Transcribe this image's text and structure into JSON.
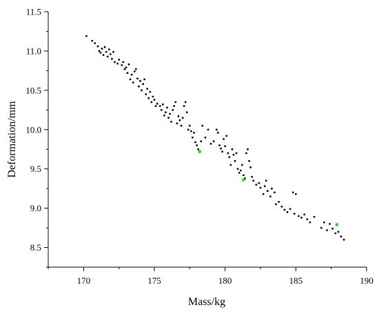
{
  "chart_data": {
    "type": "scatter",
    "xlabel": "Mass/kg",
    "ylabel": "Deformation/mm",
    "xlim": [
      167.5,
      190
    ],
    "ylim": [
      8.25,
      11.5
    ],
    "x_ticks": [
      170,
      175,
      180,
      185,
      190
    ],
    "y_ticks": [
      8.5,
      9.0,
      9.5,
      10.0,
      10.5,
      11.0,
      11.5
    ],
    "x_tick_labels": [
      "170",
      "175",
      "180",
      "185",
      "190"
    ],
    "y_tick_labels": [
      "8.5",
      "9.0",
      "9.5",
      "10.0",
      "10.5",
      "11.0",
      "11.5"
    ],
    "grid": false,
    "legend": "none",
    "series": [
      {
        "color": "#000000",
        "points": [
          [
            170.2,
            11.19
          ],
          [
            170.6,
            11.13
          ],
          [
            170.8,
            11.1
          ],
          [
            171.0,
            11.06
          ],
          [
            171.1,
            11.0
          ],
          [
            171.2,
            10.98
          ],
          [
            171.3,
            11.03
          ],
          [
            171.4,
            10.95
          ],
          [
            171.5,
            11.05
          ],
          [
            171.6,
            10.99
          ],
          [
            171.7,
            10.93
          ],
          [
            171.8,
            11.02
          ],
          [
            171.9,
            10.96
          ],
          [
            172.0,
            10.9
          ],
          [
            172.1,
            10.99
          ],
          [
            172.2,
            10.86
          ],
          [
            172.4,
            10.84
          ],
          [
            172.5,
            10.89
          ],
          [
            172.7,
            10.82
          ],
          [
            172.8,
            10.86
          ],
          [
            172.9,
            10.77
          ],
          [
            173.0,
            10.79
          ],
          [
            173.1,
            10.72
          ],
          [
            173.2,
            10.83
          ],
          [
            173.3,
            10.64
          ],
          [
            173.4,
            10.7
          ],
          [
            173.5,
            10.6
          ],
          [
            173.6,
            10.74
          ],
          [
            173.7,
            10.77
          ],
          [
            173.8,
            10.65
          ],
          [
            173.9,
            10.55
          ],
          [
            174.0,
            10.62
          ],
          [
            174.1,
            10.5
          ],
          [
            174.2,
            10.58
          ],
          [
            174.3,
            10.64
          ],
          [
            174.4,
            10.45
          ],
          [
            174.5,
            10.52
          ],
          [
            174.6,
            10.4
          ],
          [
            174.7,
            10.48
          ],
          [
            174.8,
            10.35
          ],
          [
            174.9,
            10.42
          ],
          [
            175.0,
            10.38
          ],
          [
            175.1,
            10.3
          ],
          [
            175.2,
            10.33
          ],
          [
            175.4,
            10.3
          ],
          [
            175.5,
            10.25
          ],
          [
            175.6,
            10.32
          ],
          [
            175.7,
            10.18
          ],
          [
            175.8,
            10.22
          ],
          [
            175.9,
            10.28
          ],
          [
            176.0,
            10.15
          ],
          [
            176.1,
            10.2
          ],
          [
            176.2,
            10.1
          ],
          [
            176.3,
            10.25
          ],
          [
            176.4,
            10.3
          ],
          [
            176.5,
            10.35
          ],
          [
            176.6,
            10.08
          ],
          [
            176.7,
            10.17
          ],
          [
            176.8,
            10.12
          ],
          [
            176.9,
            10.05
          ],
          [
            177.0,
            10.15
          ],
          [
            177.1,
            10.3
          ],
          [
            177.2,
            10.35
          ],
          [
            177.3,
            10.22
          ],
          [
            177.4,
            10.0
          ],
          [
            177.5,
            10.05
          ],
          [
            177.6,
            9.98
          ],
          [
            177.7,
            9.9
          ],
          [
            177.8,
            9.96
          ],
          [
            177.9,
            9.84
          ],
          [
            178.0,
            9.8
          ],
          [
            178.1,
            9.75
          ],
          [
            178.3,
            9.85
          ],
          [
            178.4,
            10.05
          ],
          [
            178.6,
            9.9
          ],
          [
            178.8,
            10.0
          ],
          [
            179.0,
            9.82
          ],
          [
            179.2,
            9.85
          ],
          [
            179.4,
            10.0
          ],
          [
            179.5,
            9.96
          ],
          [
            179.6,
            9.8
          ],
          [
            179.7,
            9.76
          ],
          [
            179.8,
            9.72
          ],
          [
            179.9,
            9.88
          ],
          [
            180.0,
            9.79
          ],
          [
            180.1,
            9.92
          ],
          [
            180.2,
            9.7
          ],
          [
            180.3,
            9.65
          ],
          [
            180.4,
            9.55
          ],
          [
            180.5,
            9.75
          ],
          [
            180.6,
            9.68
          ],
          [
            180.7,
            9.6
          ],
          [
            180.8,
            9.7
          ],
          [
            180.9,
            9.5
          ],
          [
            181.0,
            9.45
          ],
          [
            181.1,
            9.48
          ],
          [
            181.2,
            9.55
          ],
          [
            181.3,
            9.42
          ],
          [
            181.4,
            9.38
          ],
          [
            181.5,
            9.7
          ],
          [
            181.6,
            9.75
          ],
          [
            181.7,
            9.6
          ],
          [
            181.8,
            9.52
          ],
          [
            181.9,
            9.4
          ],
          [
            182.0,
            9.35
          ],
          [
            182.2,
            9.3
          ],
          [
            182.4,
            9.32
          ],
          [
            182.5,
            9.26
          ],
          [
            182.7,
            9.18
          ],
          [
            182.8,
            9.28
          ],
          [
            182.9,
            9.35
          ],
          [
            183.0,
            9.22
          ],
          [
            183.2,
            9.15
          ],
          [
            183.3,
            9.25
          ],
          [
            183.5,
            9.2
          ],
          [
            183.6,
            9.05
          ],
          [
            183.8,
            9.08
          ],
          [
            184.0,
            9.02
          ],
          [
            184.2,
            8.98
          ],
          [
            184.4,
            8.95
          ],
          [
            184.6,
            8.99
          ],
          [
            184.8,
            9.2
          ],
          [
            184.9,
            8.93
          ],
          [
            185.0,
            9.18
          ],
          [
            185.2,
            8.9
          ],
          [
            185.4,
            8.88
          ],
          [
            185.6,
            8.92
          ],
          [
            185.8,
            8.86
          ],
          [
            186.0,
            8.82
          ],
          [
            186.3,
            8.89
          ],
          [
            186.8,
            8.75
          ],
          [
            187.0,
            8.82
          ],
          [
            187.2,
            8.72
          ],
          [
            187.4,
            8.8
          ],
          [
            187.6,
            8.74
          ],
          [
            187.8,
            8.68
          ],
          [
            188.0,
            8.7
          ],
          [
            188.2,
            8.64
          ],
          [
            188.4,
            8.6
          ]
        ]
      },
      {
        "color": "#22dd22",
        "points": [
          [
            178.2,
            9.72
          ],
          [
            181.3,
            9.36
          ],
          [
            187.9,
            8.79
          ]
        ]
      }
    ]
  }
}
